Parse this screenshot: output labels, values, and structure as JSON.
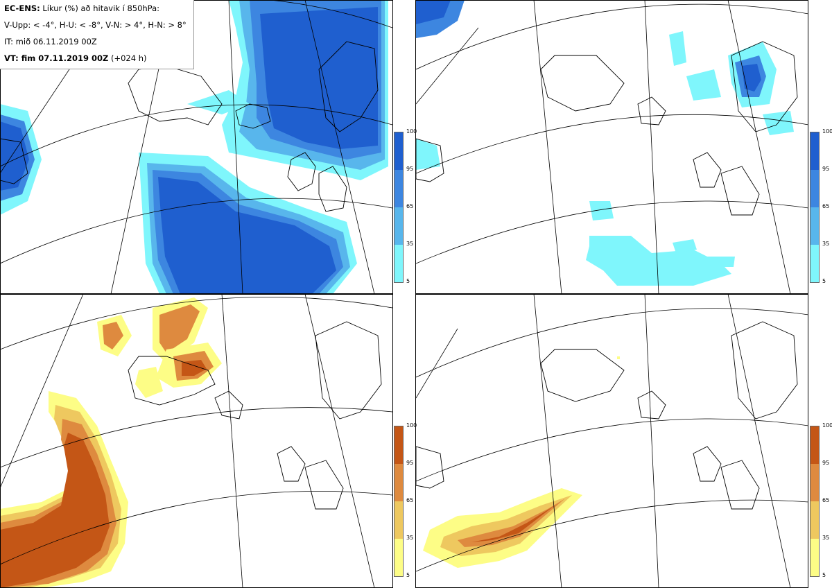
{
  "legend": {
    "line1_bold": "EC-ENS:",
    "line1_rest": "Líkur (%) að hitavik í 850hPa:",
    "line2": "V-Upp: < -4°, H-U: < -8°, V-N: > 4°, H-N: > 8°",
    "line3": "IT: mið 06.11.2019 00Z",
    "line4_bold": "VT: fim 07.11.2019 00Z",
    "line4_rest": "(+024 h)"
  },
  "colorbar": {
    "ticks": [
      "100",
      "95",
      "65",
      "35",
      "5"
    ],
    "cold_colors": [
      "#1f5fcf",
      "#3d86e0",
      "#58b6ec",
      "#7ff6fc"
    ],
    "warm_colors": [
      "#c45616",
      "#de8a3f",
      "#eec85f",
      "#fdfd86"
    ]
  },
  "panels": [
    {
      "id": "V-Upp",
      "scheme": "cold"
    },
    {
      "id": "H-U",
      "scheme": "cold"
    },
    {
      "id": "V-N",
      "scheme": "warm"
    },
    {
      "id": "H-N",
      "scheme": "warm"
    }
  ]
}
